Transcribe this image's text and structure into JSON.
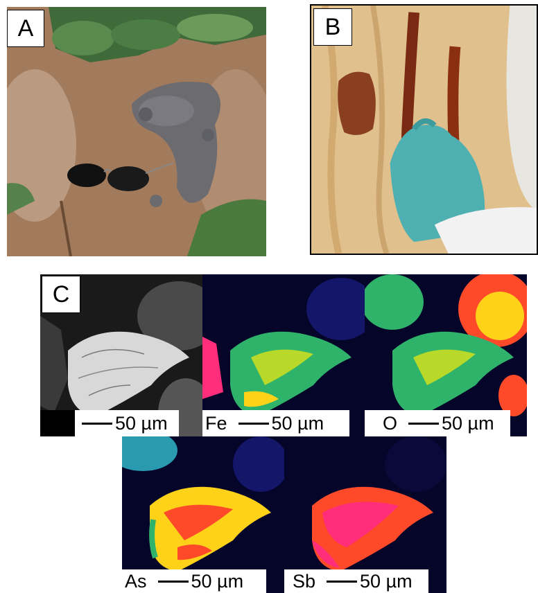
{
  "panels": {
    "a": {
      "label": "A"
    },
    "b": {
      "label": "B"
    },
    "c": {
      "label": "C"
    }
  },
  "maps": [
    {
      "element": "",
      "scale": "50 µm"
    },
    {
      "element": "Fe",
      "scale": "50 µm"
    },
    {
      "element": "O",
      "scale": "50 µm"
    },
    {
      "element": "As",
      "scale": "50 µm"
    },
    {
      "element": "Sb",
      "scale": "50 µm"
    }
  ],
  "colors": {
    "soil": "#a27a5c",
    "rock": "#d6b27a",
    "glove": "#4fb0b2",
    "map_background": "#05052a",
    "high": "#ff2d7a",
    "mid": "#ffd21a",
    "low": "#2fb36a"
  }
}
